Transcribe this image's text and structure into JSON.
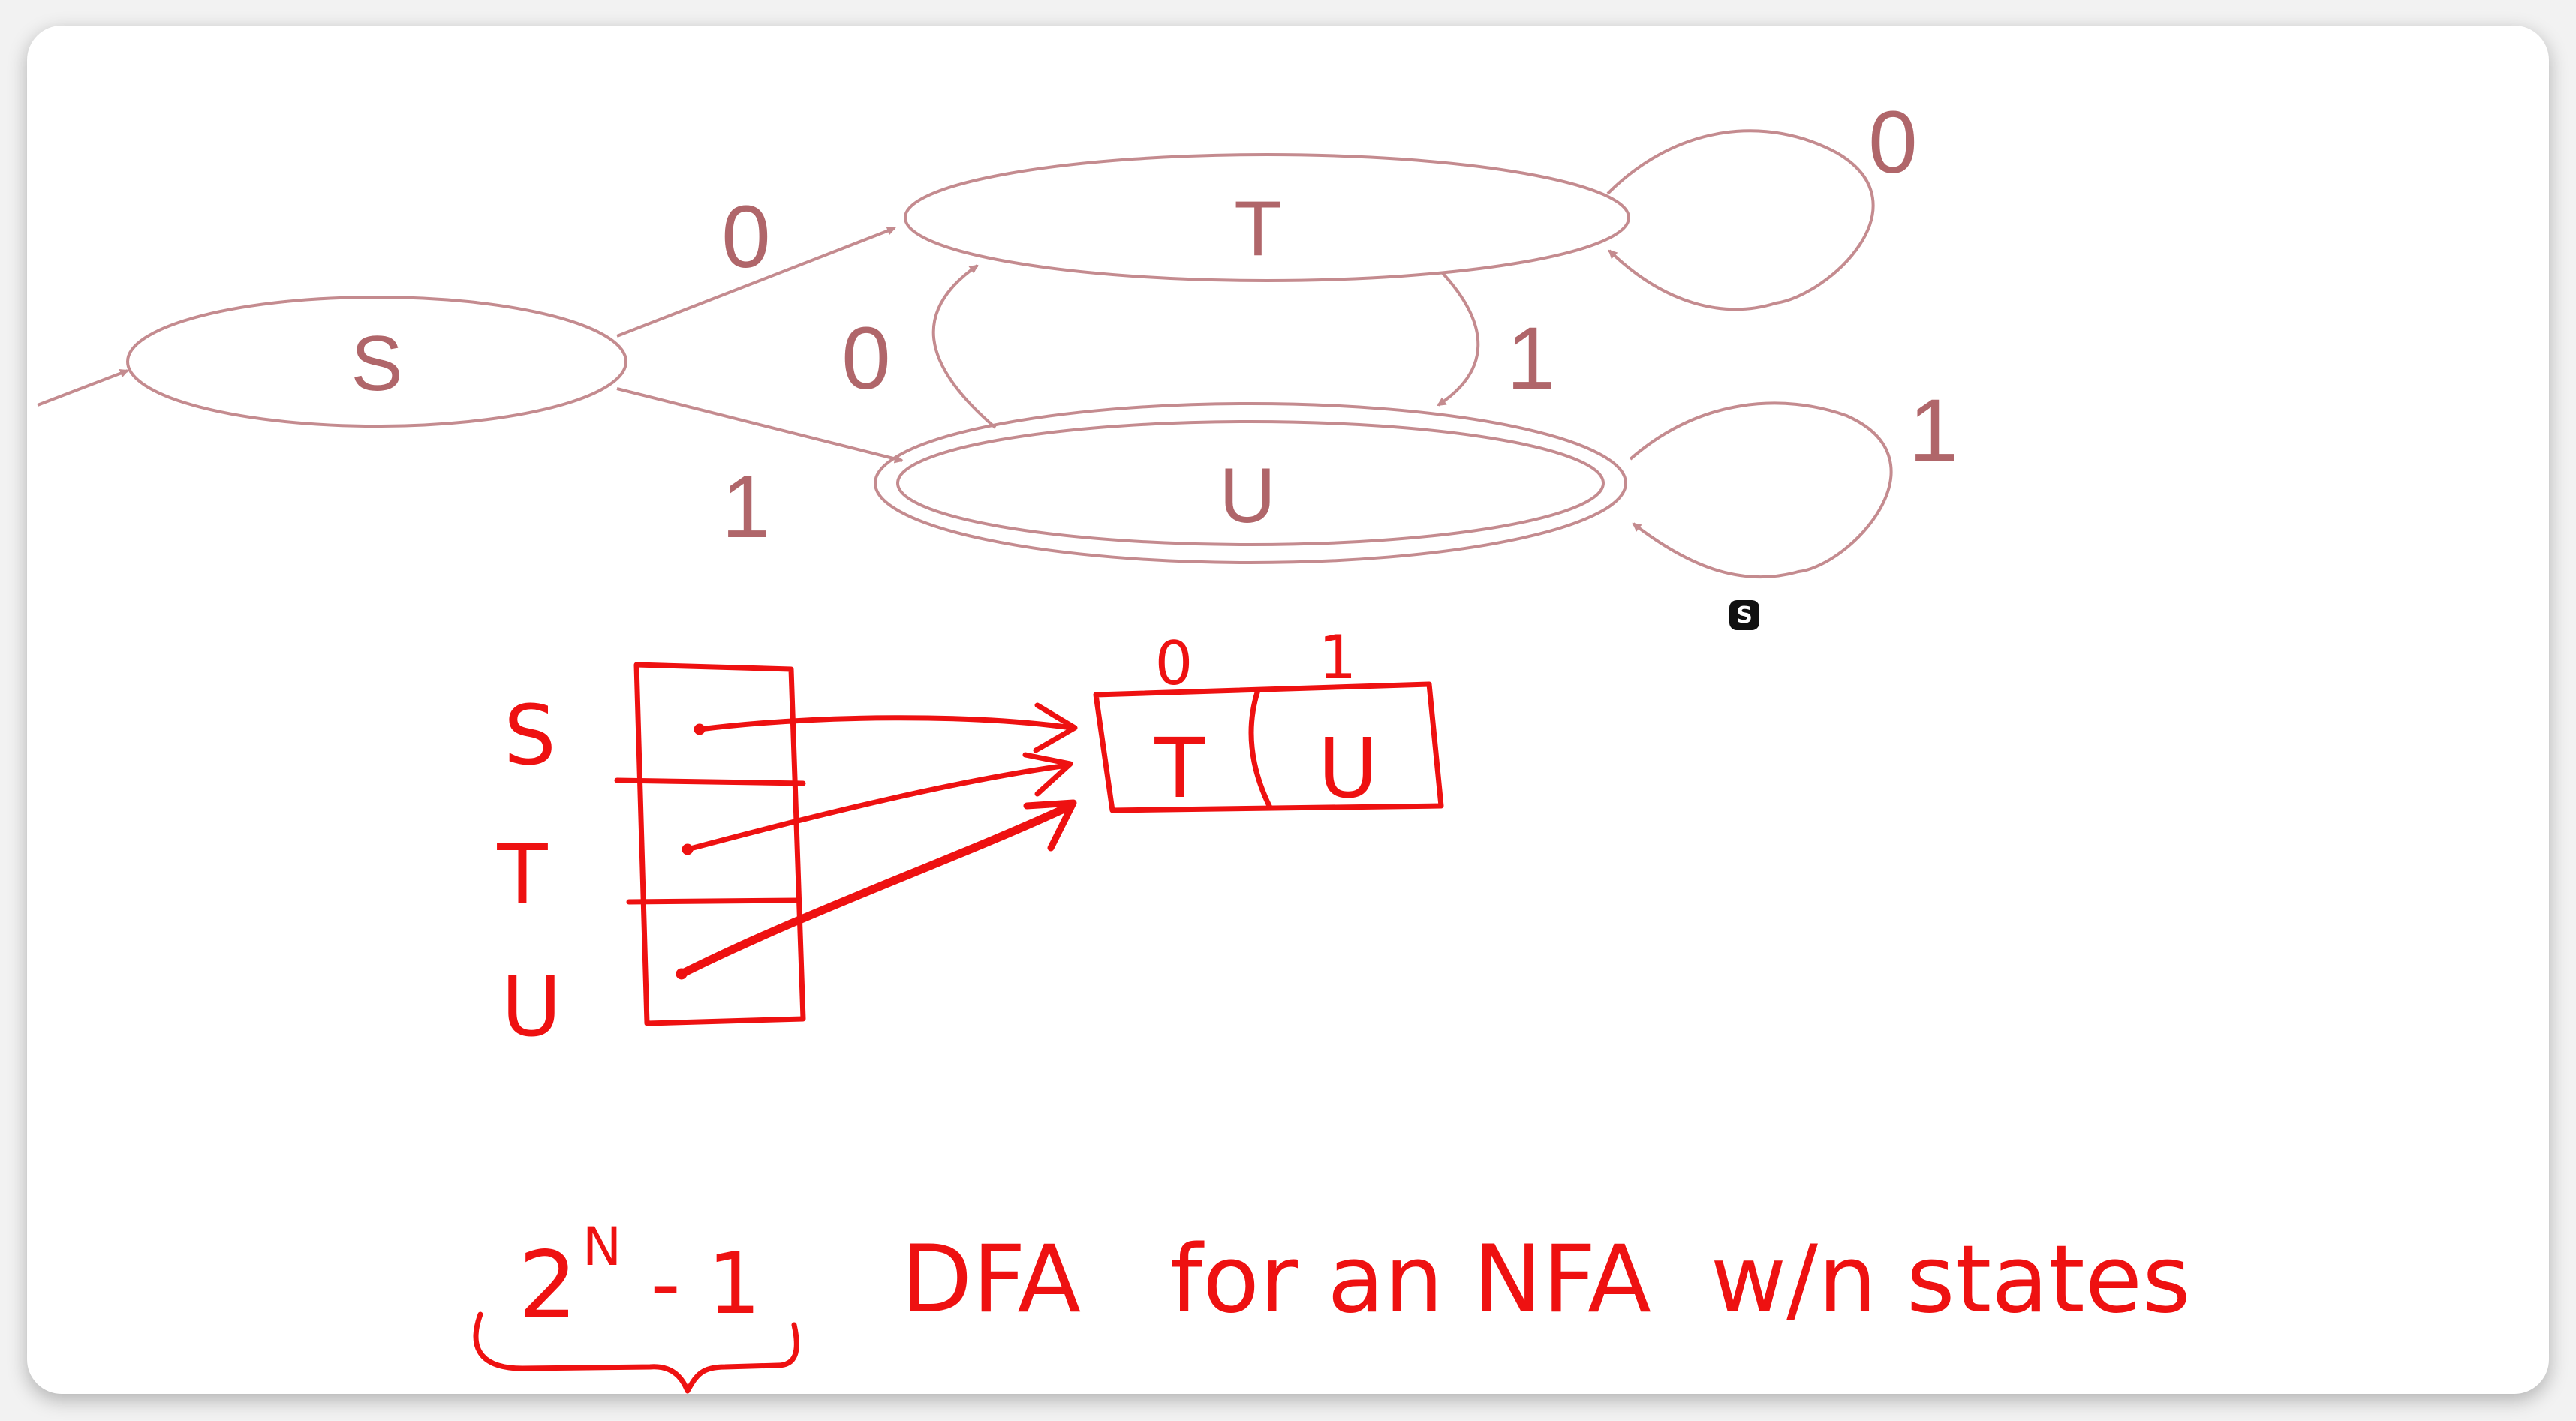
{
  "diagram": {
    "states": [
      {
        "id": "S",
        "label": "S",
        "start": true,
        "accepting": false
      },
      {
        "id": "T",
        "label": "T",
        "start": false,
        "accepting": false
      },
      {
        "id": "U",
        "label": "U",
        "start": false,
        "accepting": true
      }
    ],
    "transitions": [
      {
        "from": "S",
        "to": "T",
        "label": "0"
      },
      {
        "from": "S",
        "to": "U",
        "label": "1"
      },
      {
        "from": "U",
        "to": "T",
        "label": "0"
      },
      {
        "from": "T",
        "to": "U",
        "label": "1"
      },
      {
        "from": "T",
        "to": "T",
        "label": "0"
      },
      {
        "from": "U",
        "to": "U",
        "label": "1"
      }
    ]
  },
  "annotations": {
    "row_labels": [
      "S",
      "T",
      "U"
    ],
    "column_headers": [
      "0",
      "1"
    ],
    "target_cells": [
      "T",
      "U"
    ],
    "formula_base": "2",
    "formula_exponent": "N",
    "formula_tail": "- 1",
    "caption": "DFA   for an NFA  w/n states"
  },
  "badge": {
    "text": "S",
    "icon": "speaker-logo-icon"
  },
  "colors": {
    "diagram_stroke": "#c48b8f",
    "diagram_text": "#b0666a",
    "ink": "#ee1111",
    "frame_bg": "#ffffff",
    "outer_bg": "#f2f2f2"
  }
}
